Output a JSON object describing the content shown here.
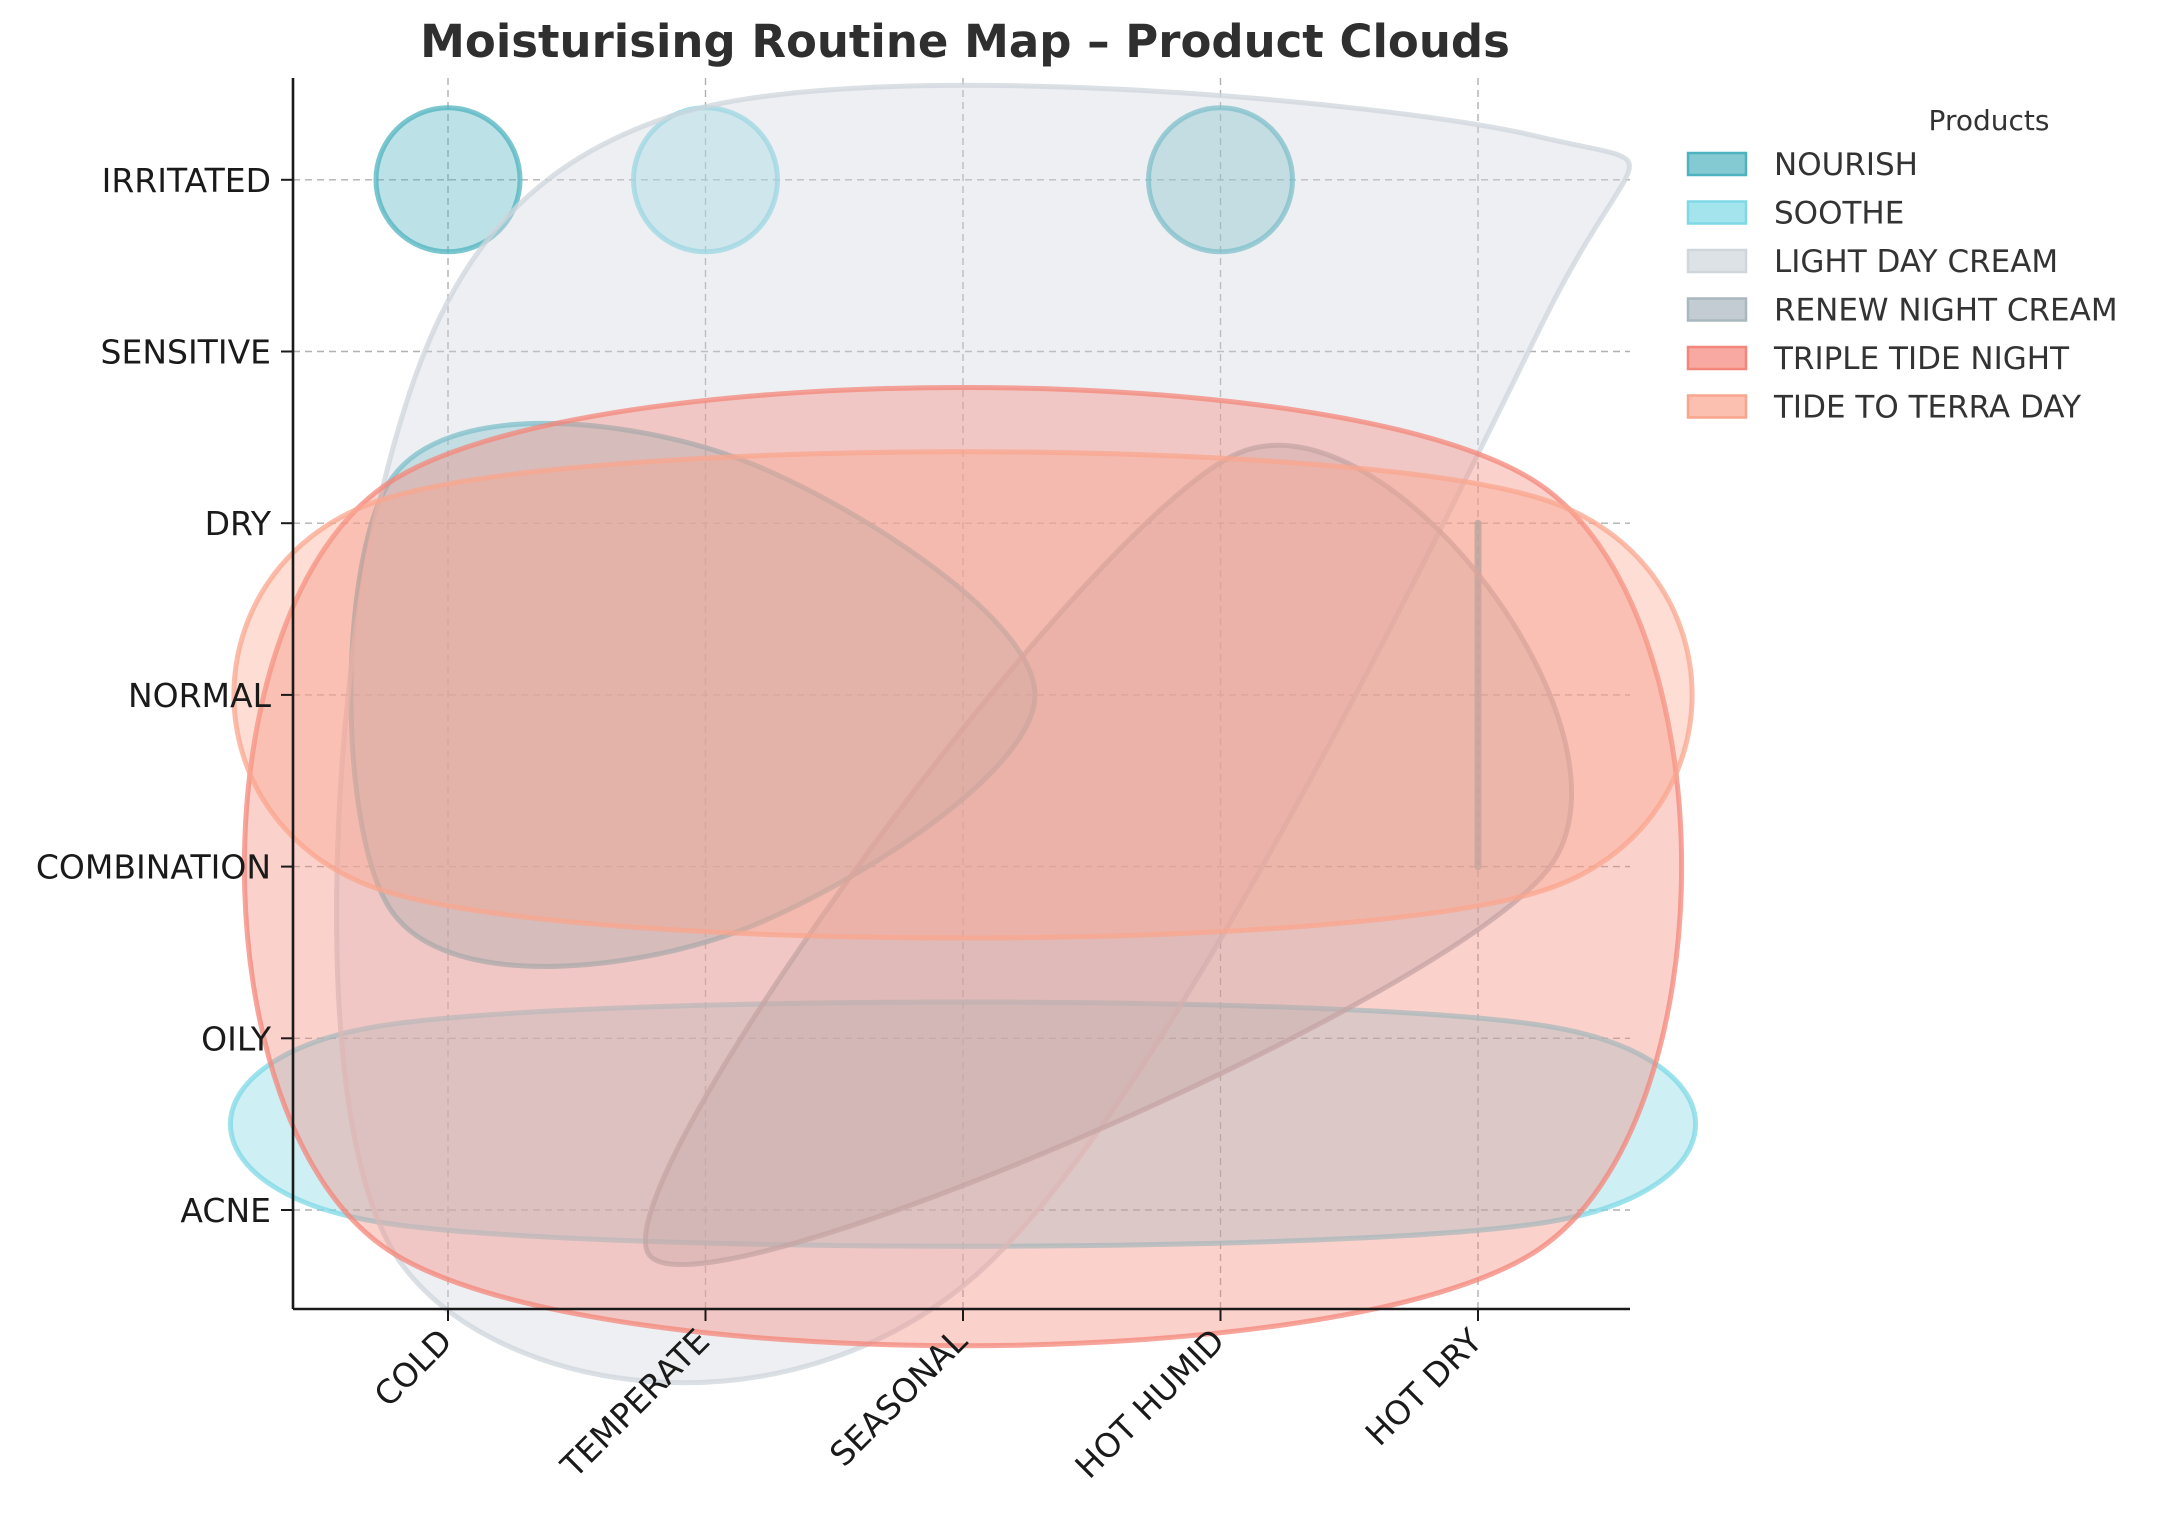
{
  "chart_data": {
    "type": "area",
    "title": "Moisturising Routine Map – Product Clouds",
    "xlabel": "",
    "ylabel": "",
    "x_categories": [
      "COLD",
      "TEMPERATE",
      "SEASONAL",
      "HOT HUMID",
      "HOT DRY"
    ],
    "y_categories": [
      "ACNE",
      "OILY",
      "COMBINATION",
      "NORMAL",
      "DRY",
      "SENSITIVE",
      "IRRITATED"
    ],
    "grid": true,
    "legend": {
      "title": "Products",
      "placement": "outside-top-right"
    },
    "series": [
      {
        "name": "NOURISH",
        "color": "#4fb3bf",
        "clouds": [
          {
            "points": [
              {
                "x": "COLD",
                "y": "IRRITATED"
              }
            ]
          },
          {
            "points": [
              {
                "x": "HOT HUMID",
                "y": "IRRITATED"
              }
            ]
          },
          {
            "points": [
              {
                "x": "COLD",
                "y": "COMBINATION"
              },
              {
                "x": "COLD",
                "y": "NORMAL"
              },
              {
                "x": "COLD",
                "y": "DRY"
              },
              {
                "x": "TEMPERATE",
                "y": "COMBINATION"
              },
              {
                "x": "TEMPERATE",
                "y": "NORMAL"
              },
              {
                "x": "TEMPERATE",
                "y": "DRY"
              },
              {
                "x": "SEASONAL",
                "y": "NORMAL"
              }
            ]
          },
          {
            "points": [
              {
                "x": "HOT DRY",
                "y": "DRY"
              },
              {
                "x": "HOT DRY",
                "y": "COMBINATION"
              }
            ]
          }
        ]
      },
      {
        "name": "SOOTHE",
        "color": "#7ed8e6",
        "clouds": [
          {
            "points": [
              {
                "x": "TEMPERATE",
                "y": "IRRITATED"
              }
            ]
          },
          {
            "points": [
              {
                "x": "COLD",
                "y": "ACNE"
              },
              {
                "x": "COLD",
                "y": "OILY"
              },
              {
                "x": "HOT DRY",
                "y": "ACNE"
              },
              {
                "x": "HOT DRY",
                "y": "OILY"
              },
              {
                "x": "SEASONAL",
                "y": "ACNE"
              }
            ]
          }
        ]
      },
      {
        "name": "LIGHT DAY CREAM",
        "color": "#cfd6dc",
        "clouds": [
          {
            "points": [
              {
                "x": "COLD",
                "y": "ACNE"
              },
              {
                "x": "COLD",
                "y": "DRY"
              },
              {
                "x": "TEMPERATE",
                "y": "IRRITATED"
              },
              {
                "x": "HOT HUMID",
                "y": "IRRITATED"
              },
              {
                "x": "HOT DRY",
                "y": "IRRITATED"
              },
              {
                "x": "HOT DRY",
                "y": "SENSITIVE"
              },
              {
                "x": "SEASONAL",
                "y": "ACNE"
              }
            ]
          }
        ]
      },
      {
        "name": "RENEW NIGHT CREAM",
        "color": "#a9b7bf",
        "clouds": [
          {
            "points": [
              {
                "x": "TEMPERATE",
                "y": "ACNE"
              },
              {
                "x": "SEASONAL",
                "y": "OILY"
              },
              {
                "x": "HOT HUMID",
                "y": "DRY"
              },
              {
                "x": "HOT DRY",
                "y": "COMBINATION"
              }
            ]
          }
        ]
      },
      {
        "name": "TRIPLE TIDE NIGHT",
        "color": "#f4857a",
        "clouds": [
          {
            "points": [
              {
                "x": "COLD",
                "y": "ACNE"
              },
              {
                "x": "COLD",
                "y": "DRY"
              },
              {
                "x": "HOT DRY",
                "y": "ACNE"
              },
              {
                "x": "HOT DRY",
                "y": "DRY"
              },
              {
                "x": "SEASONAL",
                "y": "NORMAL"
              }
            ]
          }
        ]
      },
      {
        "name": "TIDE TO TERRA DAY",
        "color": "#f9a58d",
        "clouds": [
          {
            "points": [
              {
                "x": "COLD",
                "y": "COMBINATION"
              },
              {
                "x": "COLD",
                "y": "DRY"
              },
              {
                "x": "HOT DRY",
                "y": "COMBINATION"
              },
              {
                "x": "HOT DRY",
                "y": "DRY"
              },
              {
                "x": "SEASONAL",
                "y": "NORMAL"
              }
            ]
          }
        ]
      }
    ]
  }
}
